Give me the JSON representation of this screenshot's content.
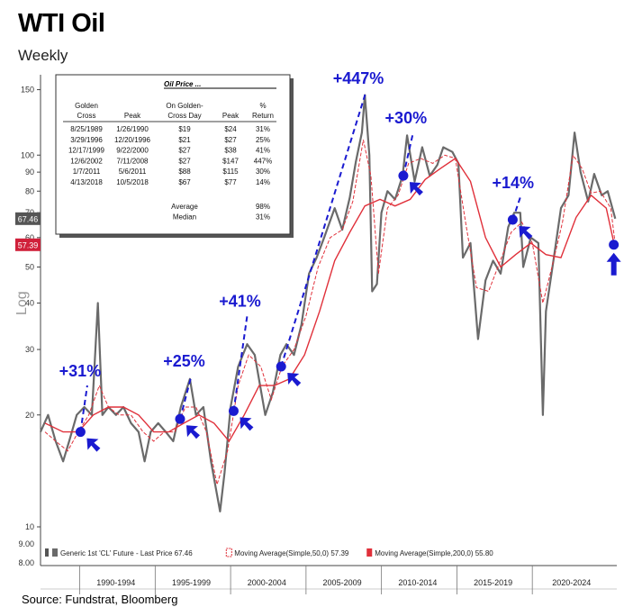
{
  "header": {
    "title": "WTI Oil",
    "subtitle": "Weekly"
  },
  "source": "Source: Fundstrat, Bloomberg",
  "axis_label": "Log",
  "colors": {
    "price": "#6a6a6a",
    "ma50": "#e0303a",
    "ma200": "#e0303a",
    "annot": "#1a1ad0",
    "marker": "#1a1ad0",
    "last_price_bg": "#555555",
    "ma_bg": "#d0203a"
  },
  "chart_data": {
    "type": "line",
    "yscale": "log",
    "ylim": [
      8,
      160
    ],
    "xlim": [
      1987.0,
      2025.2
    ],
    "y_ticks": [
      10,
      20,
      30,
      40,
      50,
      60,
      70,
      80,
      90,
      100,
      150
    ],
    "y_tick_labels": [
      "10",
      "20",
      "30",
      "40",
      "50",
      "60",
      "70",
      "80",
      "90",
      "100",
      "150"
    ],
    "y_minor_labels": [
      {
        "v": 9,
        "t": "9.00"
      },
      {
        "v": 8,
        "t": "8.00"
      }
    ],
    "x_tick_labels": [
      "1990-1994",
      "1995-1999",
      "2000-2004",
      "2005-2009",
      "2010-2014",
      "2015-2019",
      "2020-2024"
    ],
    "x_tick_centers": [
      1992,
      1997,
      2002,
      2007,
      2012,
      2017,
      2022.2
    ],
    "x_separators": [
      1989.6,
      1994.6,
      1999.6,
      2004.6,
      2009.6,
      2014.6,
      2019.6
    ],
    "last_price_badge": "67.46",
    "ma50_badge": "57.39",
    "series": [
      {
        "name": "Generic 1st 'CL' Future - Last Price 67.46",
        "x": [
          1987.0,
          1987.5,
          1988.0,
          1988.5,
          1988.9,
          1989.4,
          1989.9,
          1990.4,
          1990.6,
          1990.8,
          1991.1,
          1991.5,
          1992.0,
          1992.5,
          1993.0,
          1993.5,
          1993.9,
          1994.3,
          1994.8,
          1995.3,
          1995.8,
          1996.3,
          1996.9,
          1997.3,
          1997.8,
          1998.3,
          1998.9,
          1999.2,
          1999.6,
          2000.1,
          2000.7,
          2001.2,
          2001.9,
          2002.4,
          2002.9,
          2003.3,
          2003.8,
          2004.3,
          2004.8,
          2005.3,
          2005.8,
          2006.5,
          2007.0,
          2007.5,
          2007.9,
          2008.3,
          2008.5,
          2008.8,
          2008.98,
          2009.3,
          2009.6,
          2010.0,
          2010.5,
          2011.0,
          2011.3,
          2011.8,
          2012.3,
          2012.8,
          2013.3,
          2013.7,
          2014.3,
          2014.7,
          2015.0,
          2015.5,
          2016.0,
          2016.5,
          2017.0,
          2017.5,
          2018.0,
          2018.4,
          2018.8,
          2019.0,
          2019.5,
          2020.0,
          2020.3,
          2020.5,
          2021.0,
          2021.5,
          2022.0,
          2022.4,
          2022.8,
          2023.3,
          2023.7,
          2024.2,
          2024.6,
          2025.1
        ],
        "values": [
          18,
          20,
          17,
          15,
          17,
          20,
          21,
          20,
          28,
          40,
          20,
          21,
          20,
          21,
          19,
          18,
          15,
          18,
          19,
          18,
          17,
          21,
          25,
          20,
          21,
          15,
          11,
          14,
          21,
          27,
          31,
          29,
          20,
          23,
          29,
          31,
          29,
          35,
          48,
          53,
          60,
          72,
          63,
          77,
          96,
          115,
          145,
          100,
          43,
          45,
          70,
          80,
          76,
          88,
          113,
          85,
          105,
          88,
          94,
          105,
          102,
          95,
          53,
          58,
          32,
          46,
          52,
          48,
          64,
          70,
          70,
          50,
          60,
          58,
          20,
          38,
          52,
          72,
          78,
          115,
          90,
          75,
          89,
          78,
          80,
          67.46
        ]
      },
      {
        "name": "Moving Average(Simple,50,0) 57.39",
        "x": [
          1987.3,
          1988.0,
          1988.8,
          1989.5,
          1990.2,
          1990.9,
          1991.5,
          1992.2,
          1993.0,
          1993.8,
          1994.5,
          1995.2,
          1995.9,
          1996.6,
          1997.3,
          1998.0,
          1998.7,
          1999.4,
          2000.1,
          2000.8,
          2001.6,
          2002.3,
          2003.0,
          2003.8,
          2004.6,
          2005.4,
          2006.2,
          2007.0,
          2007.7,
          2008.4,
          2008.9,
          2009.4,
          2010.0,
          2010.7,
          2011.4,
          2012.2,
          2013.0,
          2013.8,
          2014.5,
          2015.2,
          2015.9,
          2016.7,
          2017.4,
          2018.2,
          2018.9,
          2019.6,
          2020.3,
          2020.9,
          2021.6,
          2022.3,
          2022.9,
          2023.5,
          2024.1,
          2024.8,
          2025.1
        ],
        "values": [
          18,
          17,
          16,
          18,
          20,
          24,
          21,
          20,
          20,
          18,
          17,
          18,
          18,
          21,
          21,
          18,
          13,
          16,
          24,
          29,
          27,
          22,
          27,
          30,
          37,
          50,
          60,
          63,
          75,
          110,
          88,
          48,
          72,
          78,
          95,
          98,
          95,
          100,
          98,
          65,
          44,
          43,
          51,
          62,
          66,
          58,
          40,
          50,
          66,
          100,
          92,
          79,
          80,
          72,
          57.39
        ]
      },
      {
        "name": "Moving Average(Simple,200,0) 55.80",
        "x": [
          1987.3,
          1988.5,
          1989.5,
          1990.5,
          1991.5,
          1992.5,
          1993.5,
          1994.5,
          1995.5,
          1996.5,
          1997.5,
          1998.5,
          1999.5,
          2000.5,
          2001.5,
          2002.5,
          2003.5,
          2004.5,
          2005.5,
          2006.5,
          2007.5,
          2008.5,
          2009.5,
          2010.5,
          2011.5,
          2012.5,
          2013.5,
          2014.5,
          2015.5,
          2016.5,
          2017.5,
          2018.5,
          2019.5,
          2020.5,
          2021.5,
          2022.5,
          2023.5,
          2024.5,
          2025.1
        ],
        "values": [
          19,
          18,
          18,
          20,
          21,
          21,
          20,
          18,
          18,
          19,
          20,
          19,
          17,
          20,
          24,
          24,
          25,
          29,
          38,
          52,
          62,
          73,
          76,
          73,
          76,
          86,
          92,
          98,
          85,
          60,
          50,
          54,
          58,
          54,
          53,
          68,
          78,
          72,
          55.8
        ]
      }
    ],
    "legend": [
      {
        "label": "Generic 1st 'CL' Future - Last Price 67.46",
        "swatch": "price"
      },
      {
        "label": "Moving Average(Simple,50,0) 57.39",
        "swatch": "ma50"
      },
      {
        "label": "Moving Average(Simple,200,0) 55.80",
        "swatch": "ma200"
      }
    ],
    "golden_crosses": [
      {
        "date": 1989.65,
        "value": 18.0,
        "label": "+31%",
        "peak_x": 1990.1,
        "peak_v": 24
      },
      {
        "date": 1996.25,
        "value": 19.5,
        "label": "+25%",
        "peak_x": 1997.0,
        "peak_v": 25.5
      },
      {
        "date": 1999.8,
        "value": 20.5,
        "label": "+41%",
        "peak_x": 2000.7,
        "peak_v": 37
      },
      {
        "date": 2002.95,
        "value": 27.0,
        "label": "+447%",
        "peak_x": 2008.55,
        "peak_v": 147
      },
      {
        "date": 2011.05,
        "value": 88.0,
        "label": "+30%",
        "peak_x": 2011.7,
        "peak_v": 115
      },
      {
        "date": 2018.3,
        "value": 67.0,
        "label": "+14%",
        "peak_x": 2018.8,
        "peak_v": 77
      }
    ],
    "current_marker": {
      "date": 2025.0,
      "value": 57.4
    }
  },
  "table": {
    "title": "Oil Price ...",
    "headers": [
      [
        "Golden",
        "",
        "On Golden-",
        "",
        "%"
      ],
      [
        "Cross",
        "Peak",
        "Cross Day",
        "Peak",
        "Return"
      ]
    ],
    "rows": [
      [
        "8/25/1989",
        "1/26/1990",
        "$19",
        "$24",
        "31%"
      ],
      [
        "3/29/1996",
        "12/20/1996",
        "$21",
        "$27",
        "25%"
      ],
      [
        "12/17/1999",
        "9/22/2000",
        "$27",
        "$38",
        "41%"
      ],
      [
        "12/6/2002",
        "7/11/2008",
        "$27",
        "$147",
        "447%"
      ],
      [
        "1/7/2011",
        "5/6/2011",
        "$88",
        "$115",
        "30%"
      ],
      [
        "4/13/2018",
        "10/5/2018",
        "$67",
        "$77",
        "14%"
      ]
    ],
    "summary": [
      [
        "Average",
        "98%"
      ],
      [
        "Median",
        "31%"
      ]
    ]
  }
}
